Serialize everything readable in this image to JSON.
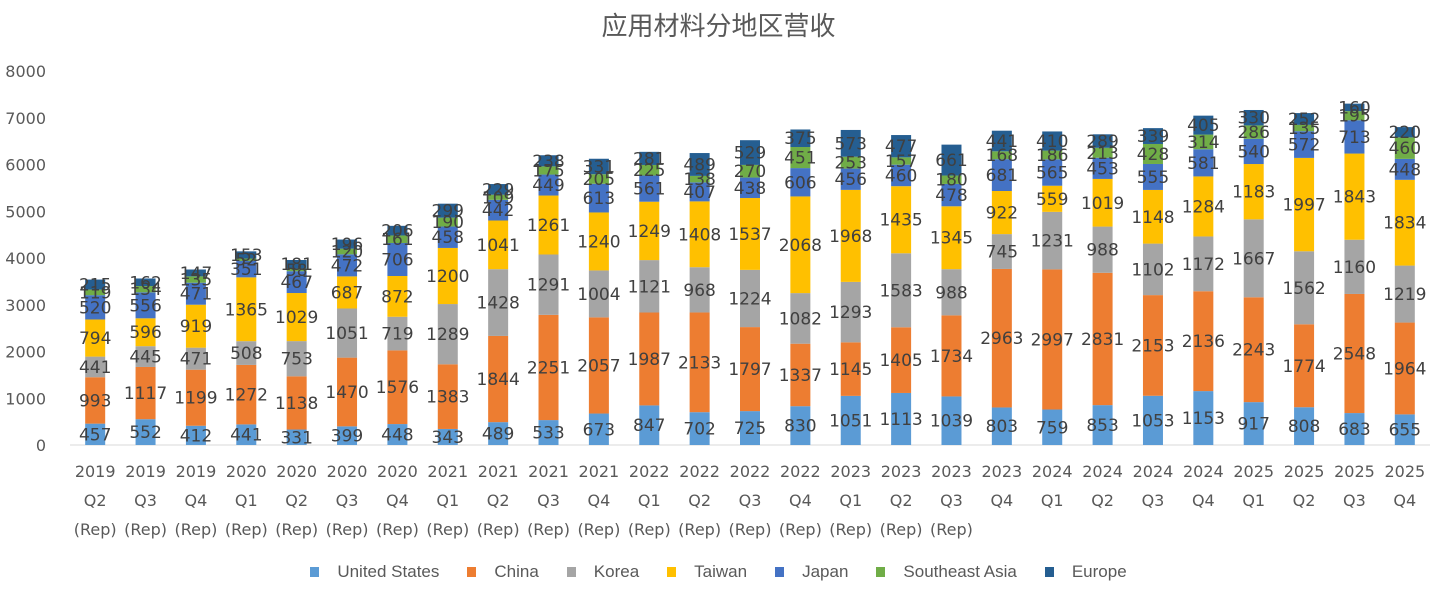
{
  "chart_data": {
    "type": "bar",
    "stacked": true,
    "title": "应用材料分地区营收",
    "xlabel": "",
    "ylabel": "",
    "ylim": [
      0,
      8000
    ],
    "yticks": [
      0,
      1000,
      2000,
      3000,
      4000,
      5000,
      6000,
      7000,
      8000
    ],
    "grid": false,
    "legend_position": "bottom",
    "categories": [
      [
        "2019",
        "Q2",
        "(Rep)"
      ],
      [
        "2019",
        "Q3",
        "(Rep)"
      ],
      [
        "2019",
        "Q4",
        "(Rep)"
      ],
      [
        "2020",
        "Q1",
        "(Rep)"
      ],
      [
        "2020",
        "Q2",
        "(Rep)"
      ],
      [
        "2020",
        "Q3",
        "(Rep)"
      ],
      [
        "2020",
        "Q4",
        "(Rep)"
      ],
      [
        "2021",
        "Q1",
        "(Rep)"
      ],
      [
        "2021",
        "Q2",
        "(Rep)"
      ],
      [
        "2021",
        "Q3",
        "(Rep)"
      ],
      [
        "2021",
        "Q4",
        "(Rep)"
      ],
      [
        "2022",
        "Q1",
        "(Rep)"
      ],
      [
        "2022",
        "Q2",
        "(Rep)"
      ],
      [
        "2022",
        "Q3",
        "(Rep)"
      ],
      [
        "2022",
        "Q4",
        "(Rep)"
      ],
      [
        "2023",
        "Q1",
        "(Rep)"
      ],
      [
        "2023",
        "Q2",
        "(Rep)"
      ],
      [
        "2023",
        "Q3",
        "(Rep)"
      ],
      [
        "2023",
        "Q4",
        ""
      ],
      [
        "2024",
        "Q1",
        ""
      ],
      [
        "2024",
        "Q2",
        ""
      ],
      [
        "2024",
        "Q3",
        ""
      ],
      [
        "2024",
        "Q4",
        ""
      ],
      [
        "2025",
        "Q1",
        ""
      ],
      [
        "2025",
        "Q2",
        ""
      ],
      [
        "2025",
        "Q3",
        ""
      ],
      [
        "2025",
        "Q4",
        ""
      ]
    ],
    "series": [
      {
        "name": "United States",
        "color": "#5B9BD5",
        "values": [
          457,
          552,
          412,
          441,
          331,
          399,
          448,
          343,
          489,
          533,
          673,
          847,
          702,
          725,
          830,
          1051,
          1113,
          1039,
          803,
          759,
          853,
          1053,
          1153,
          917,
          808,
          683,
          655
        ]
      },
      {
        "name": "China",
        "color": "#ED7D31",
        "values": [
          993,
          1117,
          1199,
          1272,
          1138,
          1470,
          1576,
          1383,
          1844,
          2251,
          2057,
          1987,
          2133,
          1797,
          1337,
          1145,
          1405,
          1734,
          2963,
          2997,
          2831,
          2153,
          2136,
          2243,
          1774,
          2548,
          1964
        ]
      },
      {
        "name": "Korea",
        "color": "#A5A5A5",
        "values": [
          441,
          445,
          471,
          508,
          753,
          1051,
          719,
          1289,
          1428,
          1291,
          1004,
          1121,
          968,
          1224,
          1082,
          1293,
          1583,
          988,
          745,
          1231,
          988,
          1102,
          1172,
          1667,
          1562,
          1160,
          1219
        ]
      },
      {
        "name": "Taiwan",
        "color": "#FFC000",
        "values": [
          794,
          596,
          919,
          1365,
          1029,
          687,
          872,
          1200,
          1041,
          1261,
          1240,
          1249,
          1408,
          1537,
          2068,
          1968,
          1435,
          1345,
          922,
          559,
          1019,
          1148,
          1284,
          1183,
          1997,
          1843,
          1834
        ]
      },
      {
        "name": "Japan",
        "color": "#4472C4",
        "values": [
          520,
          556,
          471,
          351,
          467,
          472,
          706,
          458,
          442,
          449,
          613,
          561,
          407,
          438,
          606,
          456,
          460,
          478,
          681,
          565,
          453,
          555,
          581,
          540,
          572,
          713,
          448
        ]
      },
      {
        "name": "Southeast Asia",
        "color": "#70AD47",
        "values": [
          119,
          134,
          135,
          52,
          58,
          120,
          161,
          190,
          109,
          175,
          205,
          225,
          138,
          270,
          451,
          253,
          157,
          180,
          168,
          186,
          213,
          428,
          314,
          286,
          135,
          195,
          460
        ]
      },
      {
        "name": "Europe",
        "color": "#255E91",
        "values": [
          215,
          162,
          147,
          153,
          181,
          196,
          206,
          299,
          229,
          238,
          331,
          281,
          489,
          529,
          375,
          573,
          477,
          661,
          441,
          410,
          289,
          339,
          405,
          330,
          252,
          160,
          220
        ]
      }
    ]
  }
}
